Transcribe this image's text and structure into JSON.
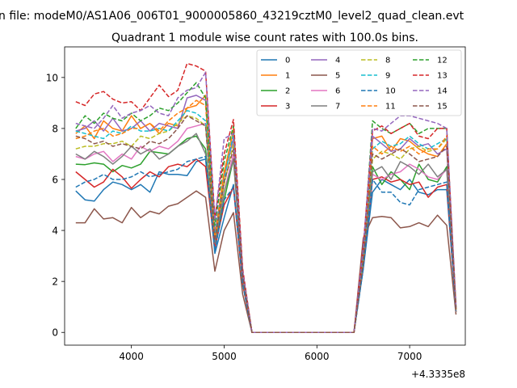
{
  "figure": {
    "suptitle": "n file: modeM0/AS1A06_006T01_9000005860_43219cztM0_level2_quad_clean.evt",
    "title": "Quadrant 1 module wise count rates with 100.0s bins.",
    "offset_label": "+4.3335e8"
  },
  "chart_data": {
    "type": "line",
    "x_offset": 433350000,
    "x": [
      3400,
      3500,
      3600,
      3700,
      3800,
      3900,
      4000,
      4100,
      4200,
      4300,
      4400,
      4500,
      4600,
      4700,
      4800,
      4900,
      5000,
      5100,
      5200,
      5300,
      6400,
      6500,
      6600,
      6700,
      6800,
      6900,
      7000,
      7100,
      7200,
      7300,
      7400,
      7500
    ],
    "xlim": [
      3280,
      7600
    ],
    "ylim": [
      -0.5,
      11.2
    ],
    "xticks": [
      4000,
      5000,
      6000,
      7000
    ],
    "xtick_labels": [
      "4000",
      "5000",
      "6000",
      "7000"
    ],
    "yticks": [
      0,
      2,
      4,
      6,
      8,
      10
    ],
    "ytick_labels": [
      "0",
      "2",
      "4",
      "6",
      "8",
      "10"
    ],
    "legend_position": "upper-right",
    "series": [
      {
        "name": "0",
        "color": "#1f77b4",
        "dash": "solid",
        "values": [
          5.55,
          5.2,
          5.15,
          5.6,
          5.9,
          5.8,
          5.6,
          5.8,
          5.5,
          6.3,
          6.2,
          6.2,
          6.15,
          6.7,
          6.8,
          3.1,
          4.5,
          5.8,
          2.0,
          0,
          0,
          2.5,
          5.5,
          6.0,
          5.8,
          5.6,
          6.0,
          5.5,
          5.4,
          5.6,
          5.6,
          0.9
        ]
      },
      {
        "name": "1",
        "color": "#ff7f0e",
        "dash": "solid",
        "values": [
          7.8,
          8.1,
          7.6,
          8.3,
          8.0,
          7.9,
          8.5,
          8.0,
          8.2,
          7.8,
          8.2,
          8.1,
          8.8,
          8.9,
          9.3,
          3.8,
          6.3,
          7.9,
          2.3,
          0,
          0,
          3.0,
          7.6,
          7.7,
          7.1,
          7.6,
          7.5,
          7.2,
          7.0,
          6.9,
          7.4,
          0.9
        ]
      },
      {
        "name": "2",
        "color": "#2ca02c",
        "dash": "solid",
        "values": [
          6.6,
          6.58,
          6.65,
          6.6,
          6.3,
          6.55,
          6.45,
          6.6,
          7.1,
          7.05,
          7.0,
          7.3,
          7.6,
          7.7,
          7.2,
          3.5,
          5.2,
          6.8,
          2.1,
          0,
          0,
          2.7,
          6.5,
          5.8,
          6.3,
          6.0,
          5.6,
          6.6,
          6.0,
          5.9,
          6.5,
          0.8
        ]
      },
      {
        "name": "3",
        "color": "#d62728",
        "dash": "solid",
        "values": [
          6.3,
          6.0,
          5.7,
          5.9,
          6.4,
          6.1,
          5.65,
          6.0,
          6.3,
          6.1,
          6.5,
          6.6,
          6.5,
          6.8,
          6.5,
          3.3,
          5.0,
          5.7,
          1.9,
          0,
          0,
          2.6,
          6.0,
          6.1,
          5.9,
          6.0,
          5.8,
          5.9,
          5.3,
          5.7,
          5.8,
          0.8
        ]
      },
      {
        "name": "4",
        "color": "#9467bd",
        "dash": "solid",
        "values": [
          7.9,
          8.0,
          8.3,
          7.9,
          8.4,
          7.9,
          8.0,
          8.3,
          7.9,
          8.2,
          8.1,
          8.0,
          9.2,
          9.3,
          9.1,
          3.9,
          6.1,
          7.6,
          2.3,
          0,
          0,
          3.0,
          7.7,
          7.4,
          7.1,
          7.2,
          7.6,
          7.3,
          7.4,
          7.0,
          7.2,
          0.9
        ]
      },
      {
        "name": "5",
        "color": "#8c564b",
        "dash": "solid",
        "values": [
          4.3,
          4.3,
          4.85,
          4.45,
          4.5,
          4.3,
          4.9,
          4.5,
          4.75,
          4.65,
          4.95,
          5.05,
          5.3,
          5.55,
          5.3,
          2.4,
          4.0,
          4.7,
          1.5,
          0,
          0,
          3.7,
          4.5,
          4.55,
          4.5,
          4.1,
          4.15,
          4.3,
          4.15,
          4.6,
          4.2,
          0.7
        ]
      },
      {
        "name": "6",
        "color": "#e377c2",
        "dash": "solid",
        "values": [
          6.9,
          6.8,
          7.0,
          7.1,
          6.7,
          7.0,
          6.8,
          7.3,
          7.1,
          7.3,
          7.2,
          7.5,
          8.0,
          8.1,
          8.2,
          3.6,
          5.5,
          7.0,
          2.2,
          0,
          0,
          2.8,
          6.2,
          6.0,
          6.2,
          6.3,
          6.6,
          6.4,
          6.1,
          6.0,
          6.4,
          0.8
        ]
      },
      {
        "name": "7",
        "color": "#7f7f7f",
        "dash": "solid",
        "values": [
          7.0,
          6.8,
          7.1,
          6.9,
          6.6,
          6.9,
          7.3,
          7.0,
          7.2,
          6.8,
          7.0,
          7.3,
          7.5,
          7.8,
          7.0,
          3.5,
          5.5,
          6.8,
          2.1,
          0,
          0,
          2.7,
          6.3,
          6.5,
          6.0,
          6.7,
          6.5,
          6.2,
          6.6,
          6.1,
          6.4,
          0.8
        ]
      },
      {
        "name": "8",
        "color": "#bcbd22",
        "dash": "dashed",
        "values": [
          7.2,
          7.3,
          7.3,
          7.4,
          7.4,
          7.5,
          7.3,
          7.7,
          7.6,
          7.8,
          7.9,
          8.2,
          8.5,
          8.4,
          8.1,
          3.7,
          5.8,
          7.4,
          2.2,
          0,
          0,
          2.9,
          6.8,
          7.1,
          7.0,
          6.8,
          7.2,
          7.3,
          7.1,
          7.2,
          7.6,
          0.9
        ]
      },
      {
        "name": "9",
        "color": "#17becf",
        "dash": "dashed",
        "values": [
          7.9,
          7.8,
          7.7,
          7.6,
          7.9,
          7.8,
          8.1,
          7.9,
          7.9,
          8.0,
          7.9,
          8.3,
          8.7,
          8.6,
          8.3,
          3.8,
          6.0,
          7.8,
          2.3,
          0,
          0,
          2.9,
          7.2,
          7.5,
          7.3,
          7.4,
          7.7,
          7.4,
          7.2,
          7.4,
          7.6,
          0.9
        ]
      },
      {
        "name": "10",
        "color": "#1f77b4",
        "dash": "dashed",
        "values": [
          5.7,
          5.9,
          6.0,
          6.2,
          6.0,
          6.0,
          6.1,
          6.3,
          6.1,
          6.2,
          6.3,
          6.4,
          6.7,
          6.8,
          6.9,
          3.2,
          5.2,
          5.7,
          1.9,
          0,
          0,
          2.5,
          6.0,
          5.5,
          5.5,
          5.1,
          5.0,
          5.6,
          5.7,
          5.8,
          5.9,
          0.8
        ]
      },
      {
        "name": "11",
        "color": "#ff7f0e",
        "dash": "dashed",
        "values": [
          7.6,
          7.7,
          7.9,
          8.0,
          7.7,
          7.8,
          8.0,
          8.0,
          8.2,
          7.9,
          8.3,
          8.6,
          8.8,
          9.1,
          8.9,
          3.7,
          6.2,
          8.0,
          2.3,
          0,
          0,
          3.0,
          7.3,
          7.0,
          7.3,
          7.1,
          7.3,
          7.0,
          7.2,
          7.2,
          7.7,
          0.9
        ]
      },
      {
        "name": "12",
        "color": "#2ca02c",
        "dash": "dashed",
        "values": [
          8.0,
          8.5,
          8.2,
          8.6,
          8.4,
          8.3,
          8.6,
          8.3,
          8.5,
          8.8,
          8.7,
          9.0,
          9.4,
          9.8,
          9.2,
          4.2,
          6.7,
          8.1,
          2.4,
          0,
          0,
          3.2,
          8.3,
          8.0,
          7.8,
          8.0,
          8.2,
          7.8,
          8.0,
          8.0,
          8.0,
          1.0
        ]
      },
      {
        "name": "13",
        "color": "#d62728",
        "dash": "dashed",
        "values": [
          9.05,
          8.9,
          9.35,
          9.45,
          9.15,
          9.0,
          9.05,
          8.7,
          9.2,
          9.7,
          9.25,
          9.5,
          10.55,
          10.45,
          10.25,
          4.5,
          7.0,
          8.35,
          2.5,
          0,
          0,
          3.4,
          7.9,
          8.1,
          7.8,
          8.0,
          8.2,
          7.7,
          7.6,
          8.0,
          8.0,
          1.0
        ]
      },
      {
        "name": "14",
        "color": "#9467bd",
        "dash": "dashed",
        "values": [
          8.2,
          8.1,
          8.0,
          8.4,
          8.9,
          8.4,
          8.6,
          8.7,
          8.9,
          8.6,
          8.5,
          9.2,
          9.5,
          9.6,
          10.2,
          4.4,
          7.6,
          7.8,
          2.4,
          0,
          0,
          3.3,
          8.0,
          7.9,
          8.2,
          8.5,
          8.5,
          8.4,
          8.3,
          8.2,
          8.0,
          1.0
        ]
      },
      {
        "name": "15",
        "color": "#8c564b",
        "dash": "dashed",
        "values": [
          7.7,
          7.6,
          7.4,
          7.5,
          7.3,
          7.4,
          7.3,
          7.2,
          7.5,
          7.4,
          7.6,
          8.0,
          8.5,
          8.3,
          8.1,
          3.6,
          5.9,
          7.2,
          2.2,
          0,
          0,
          2.8,
          7.0,
          6.8,
          7.0,
          7.2,
          7.0,
          6.7,
          6.8,
          6.9,
          7.3,
          0.9
        ]
      }
    ]
  }
}
